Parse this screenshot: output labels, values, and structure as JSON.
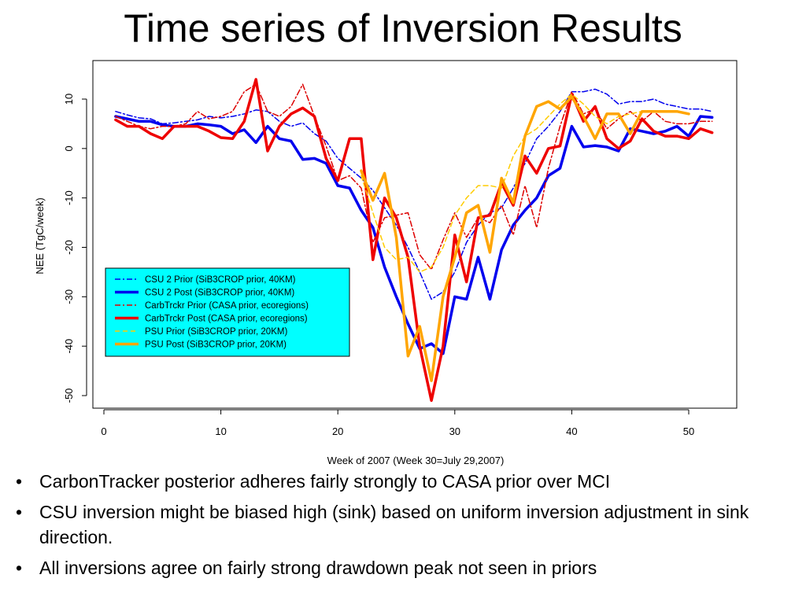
{
  "slide": {
    "title": "Time series of Inversion Results",
    "bullets": [
      "CarbonTracker posterior adheres fairly strongly to CASA prior over MCI",
      "CSU inversion might be biased high (sink) based on uniform inversion adjustment in sink direction.",
      "All inversions agree on fairly strong drawdown peak not seen in priors"
    ]
  },
  "chart_data": {
    "type": "line",
    "title": "",
    "xlabel": "Week of 2007 (Week 30=July 29,2007)",
    "ylabel": "NEE (TgC/week)",
    "xlim": [
      0,
      54
    ],
    "ylim": [
      -52,
      17
    ],
    "xticks": [
      0,
      10,
      20,
      30,
      40,
      50
    ],
    "yticks": [
      10,
      0,
      -10,
      -20,
      -30,
      -40,
      -50
    ],
    "legend_position": "bottom-left",
    "grid": false,
    "series": [
      {
        "name": "CSU 2 Prior (SiB3CROP prior, 40KM)",
        "color": "#0000ee",
        "dash": "dashdot",
        "width": "thin",
        "x": [
          1,
          2,
          3,
          4,
          5,
          6,
          7,
          8,
          9,
          10,
          11,
          12,
          13,
          14,
          15,
          16,
          17,
          18,
          19,
          20,
          21,
          22,
          23,
          24,
          25,
          26,
          27,
          28,
          29,
          30,
          31,
          32,
          33,
          34,
          35,
          36,
          37,
          38,
          39,
          40,
          41,
          42,
          43,
          44,
          45,
          46,
          47,
          48,
          49,
          50,
          51,
          52
        ],
        "y": [
          7.5,
          6.8,
          6.2,
          6.0,
          5.0,
          5.2,
          5.5,
          5.8,
          6.5,
          6.2,
          6.5,
          7.0,
          7.8,
          7.5,
          5.5,
          4.5,
          5.2,
          3.0,
          1.5,
          -2.0,
          -4.0,
          -6.0,
          -8.5,
          -12.0,
          -15.5,
          -20.0,
          -25.0,
          -30.5,
          -29.0,
          -25.0,
          -19.0,
          -15.5,
          -13.0,
          -12.0,
          -8.0,
          -3.0,
          2.0,
          4.5,
          7.5,
          11.5,
          11.5,
          12.0,
          11.0,
          9.0,
          9.5,
          9.5,
          10.0,
          9.0,
          8.5,
          8.0,
          8.0,
          7.5
        ]
      },
      {
        "name": "CSU 2 Post (SiB3CROP prior, 40KM)",
        "color": "#0000ee",
        "dash": "solid",
        "width": "thick",
        "x": [
          1,
          2,
          3,
          4,
          5,
          6,
          7,
          8,
          9,
          10,
          11,
          12,
          13,
          14,
          15,
          16,
          17,
          18,
          19,
          20,
          21,
          22,
          23,
          24,
          25,
          26,
          27,
          28,
          29,
          30,
          31,
          32,
          33,
          34,
          35,
          36,
          37,
          38,
          39,
          40,
          41,
          42,
          43,
          44,
          45,
          46,
          47,
          48,
          49,
          50,
          51,
          52
        ],
        "y": [
          6.5,
          6.0,
          5.5,
          5.5,
          4.8,
          4.5,
          4.5,
          5.0,
          4.8,
          4.5,
          3.0,
          3.8,
          1.2,
          4.5,
          2.0,
          1.5,
          -2.2,
          -2.0,
          -3.0,
          -7.5,
          -8.0,
          -12.5,
          -16.0,
          -24.0,
          -30.0,
          -35.5,
          -40.5,
          -39.5,
          -41.5,
          -30.0,
          -30.5,
          -22.0,
          -30.5,
          -20.5,
          -15.5,
          -12.5,
          -10.0,
          -5.5,
          -4.0,
          4.5,
          0.3,
          0.6,
          0.3,
          -0.5,
          4.0,
          3.5,
          3.0,
          3.5,
          4.5,
          2.5,
          6.5,
          6.3
        ]
      },
      {
        "name": "CarbTrckr Prior (CASA prior, ecoregions)",
        "color": "#dd0000",
        "dash": "dashdot",
        "width": "thin",
        "x": [
          1,
          2,
          3,
          4,
          5,
          6,
          7,
          8,
          9,
          10,
          11,
          12,
          13,
          14,
          15,
          16,
          17,
          18,
          19,
          20,
          21,
          22,
          23,
          24,
          25,
          26,
          27,
          28,
          29,
          30,
          31,
          32,
          33,
          34,
          35,
          36,
          37,
          38,
          39,
          40,
          41,
          42,
          43,
          44,
          45,
          46,
          47,
          48,
          49,
          50,
          51,
          52
        ],
        "y": [
          6.5,
          5.5,
          4.5,
          4.0,
          4.5,
          4.5,
          5.0,
          7.5,
          6.0,
          6.5,
          7.5,
          11.5,
          13.0,
          7.5,
          6.5,
          8.5,
          13.0,
          6.5,
          0.5,
          -6.5,
          -5.5,
          -8.0,
          -19.0,
          -14.0,
          -13.5,
          -13.0,
          -21.5,
          -24.5,
          -18.5,
          -13.0,
          -18.0,
          -14.0,
          -15.0,
          -11.5,
          -17.5,
          -7.5,
          -16.0,
          -4.0,
          4.5,
          11.5,
          7.0,
          8.0,
          4.0,
          6.0,
          7.5,
          5.5,
          7.5,
          5.5,
          5.0,
          5.0,
          5.5,
          5.5
        ]
      },
      {
        "name": "CarbTrckr Post (CASA prior, ecoregions)",
        "color": "#ee0000",
        "dash": "solid",
        "width": "thick",
        "x": [
          1,
          2,
          3,
          4,
          5,
          6,
          7,
          8,
          9,
          10,
          11,
          12,
          13,
          14,
          15,
          16,
          17,
          18,
          19,
          20,
          21,
          22,
          23,
          24,
          25,
          26,
          27,
          28,
          29,
          30,
          31,
          32,
          33,
          34,
          35,
          36,
          37,
          38,
          39,
          40,
          41,
          42,
          43,
          44,
          45,
          46,
          47,
          48,
          49,
          50,
          51,
          52
        ],
        "y": [
          5.8,
          4.5,
          4.5,
          3.0,
          2.0,
          4.5,
          4.5,
          4.5,
          3.5,
          2.2,
          2.0,
          5.5,
          14.0,
          -0.5,
          4.5,
          7.0,
          8.2,
          6.5,
          -2.0,
          -6.5,
          2.0,
          2.0,
          -22.5,
          -10.0,
          -14.0,
          -22.0,
          -40.0,
          -51.0,
          -40.0,
          -17.5,
          -27.0,
          -14.0,
          -13.5,
          -7.0,
          -11.5,
          -1.5,
          -5.0,
          0.0,
          0.5,
          11.0,
          5.5,
          8.5,
          2.0,
          0.0,
          1.5,
          6.0,
          3.5,
          2.5,
          2.5,
          2.0,
          4.0,
          3.2
        ]
      },
      {
        "name": "PSU Prior (SiB3CROP prior, 20KM)",
        "color": "#ffcc00",
        "dash": "dashed",
        "width": "thin",
        "x": [
          22,
          23,
          24,
          25,
          26,
          27,
          28,
          29,
          30,
          31,
          32,
          33,
          34,
          35,
          36,
          37,
          38,
          39,
          40,
          41,
          42,
          43,
          44,
          45,
          46,
          47,
          48,
          49,
          50
        ],
        "y": [
          -5.5,
          -13.0,
          -20.0,
          -22.5,
          -22.0,
          -25.0,
          -24.0,
          -20.0,
          -13.5,
          -10.0,
          -7.5,
          -7.5,
          -8.0,
          -1.5,
          2.5,
          4.0,
          6.5,
          9.0,
          11.0,
          9.0,
          6.5,
          5.0,
          6.5,
          7.0,
          7.5,
          7.5,
          7.5,
          7.5,
          7.0
        ]
      },
      {
        "name": "PSU Post (SiB3CROP prior, 20KM)",
        "color": "#ffa500",
        "dash": "solid",
        "width": "thick",
        "x": [
          22,
          23,
          24,
          25,
          26,
          27,
          28,
          29,
          30,
          31,
          32,
          33,
          34,
          35,
          36,
          37,
          38,
          39,
          40,
          41,
          42,
          43,
          44,
          45,
          46,
          47,
          48,
          49,
          50
        ],
        "y": [
          -4.5,
          -10.5,
          -5.0,
          -18.0,
          -42.0,
          -36.0,
          -47.0,
          -30.0,
          -22.0,
          -13.0,
          -11.5,
          -21.0,
          -6.0,
          -11.0,
          2.5,
          8.5,
          9.5,
          8.0,
          10.5,
          6.5,
          2.0,
          7.0,
          7.0,
          3.0,
          7.5,
          7.5,
          7.5,
          7.5,
          7.0
        ]
      }
    ]
  }
}
